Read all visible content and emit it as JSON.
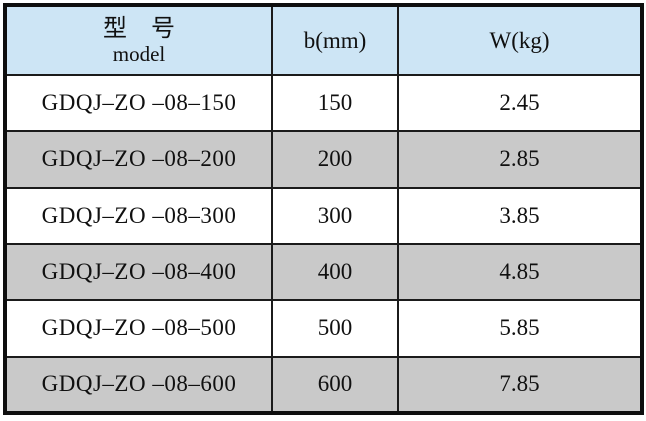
{
  "table": {
    "header": {
      "model_zh": "型　号",
      "model_en": "model",
      "b": "b(mm)",
      "w": "W(kg)"
    },
    "rows": [
      {
        "model": "GDQJ–ZO –08–150",
        "b": "150",
        "w": "2.45"
      },
      {
        "model": "GDQJ–ZO –08–200",
        "b": "200",
        "w": "2.85"
      },
      {
        "model": "GDQJ–ZO –08–300",
        "b": "300",
        "w": "3.85"
      },
      {
        "model": "GDQJ–ZO –08–400",
        "b": "400",
        "w": "4.85"
      },
      {
        "model": "GDQJ–ZO –08–500",
        "b": "500",
        "w": "5.85"
      },
      {
        "model": "GDQJ–ZO –08–600",
        "b": "600",
        "w": "7.85"
      }
    ]
  },
  "colors": {
    "header_bg": "#cde5f5",
    "alt_row_bg": "#c9c9c9",
    "border": "#0e0e0e",
    "text": "#101010"
  }
}
